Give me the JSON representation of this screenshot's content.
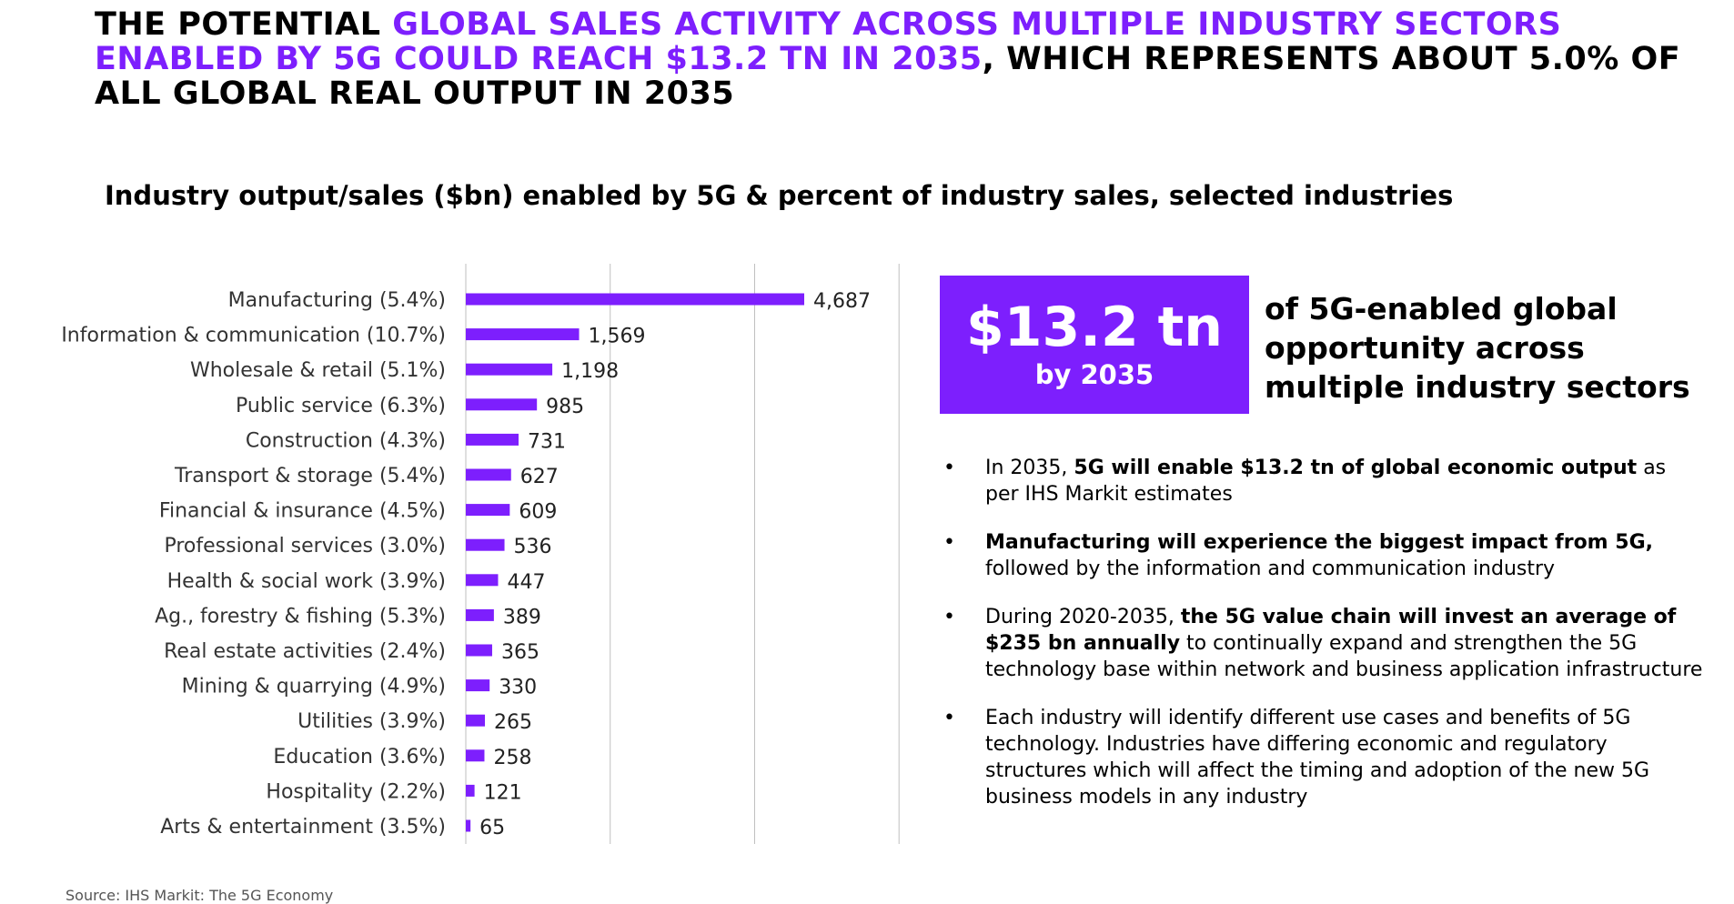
{
  "headline": {
    "part1": "THE POTENTIAL ",
    "accent": "GLOBAL SALES ACTIVITY ACROSS MULTIPLE INDUSTRY SECTORS ENABLED BY 5G COULD REACH $13.2 TN IN 2035",
    "part2": ", WHICH REPRESENTS ABOUT 5.0% OF ALL GLOBAL REAL OUTPUT IN 2035"
  },
  "chart_data": {
    "type": "bar",
    "orientation": "horizontal",
    "title": "Industry output/sales ($bn) enabled by 5G & percent of industry sales, selected industries",
    "categories": [
      "Manufacturing (5.4%)",
      "Information & communication (10.7%)",
      "Wholesale & retail (5.1%)",
      "Public service (6.3%)",
      "Construction (4.3%)",
      "Transport & storage (5.4%)",
      "Financial & insurance (4.5%)",
      "Professional services (3.0%)",
      "Health & social work (3.9%)",
      "Ag., forestry & fishing (5.3%)",
      "Real estate activities (2.4%)",
      "Mining & quarrying (4.9%)",
      "Utilities (3.9%)",
      "Education (3.6%)",
      "Hospitality (2.2%)",
      "Arts & entertainment (3.5%)"
    ],
    "values": [
      4687,
      1569,
      1198,
      985,
      731,
      627,
      609,
      536,
      447,
      389,
      365,
      330,
      265,
      258,
      121,
      65
    ],
    "value_labels": [
      "4,687",
      "1,569",
      "1,198",
      "985",
      "731",
      "627",
      "609",
      "536",
      "447",
      "389",
      "365",
      "330",
      "265",
      "258",
      "121",
      "65"
    ],
    "xlim": [
      0,
      6000
    ],
    "gridlines_at": [
      0,
      2000,
      4000,
      6000
    ],
    "grid": true,
    "bar_color": "#7d1ffd"
  },
  "callout": {
    "big": "$13.2 tn",
    "sub": "by 2035",
    "text": "of 5G-enabled global opportunity across multiple industry sectors"
  },
  "bullets": [
    {
      "pre": "In 2035, ",
      "bold": "5G will enable $13.2 tn of global economic output",
      "post": " as per IHS Markit estimates"
    },
    {
      "pre": "",
      "bold": "Manufacturing will experience the biggest impact from 5G,",
      "post": " followed by the information and communication industry"
    },
    {
      "pre": "During 2020-2035, ",
      "bold": "the 5G value chain will invest an average of $235 bn annually",
      "post": " to continually expand and strengthen the 5G technology base within network and business application infrastructure"
    },
    {
      "pre": "Each industry will identify different use cases and benefits of 5G technology. Industries have differing economic and regulatory structures which will affect the timing and adoption of the new 5G business models in any industry",
      "bold": "",
      "post": ""
    }
  ],
  "bullet_symbol": "•",
  "source": "Source: IHS Markit: The 5G Economy",
  "colors": {
    "accent": "#7d1ffd",
    "text": "#000000",
    "grid": "#bfbfbf"
  }
}
